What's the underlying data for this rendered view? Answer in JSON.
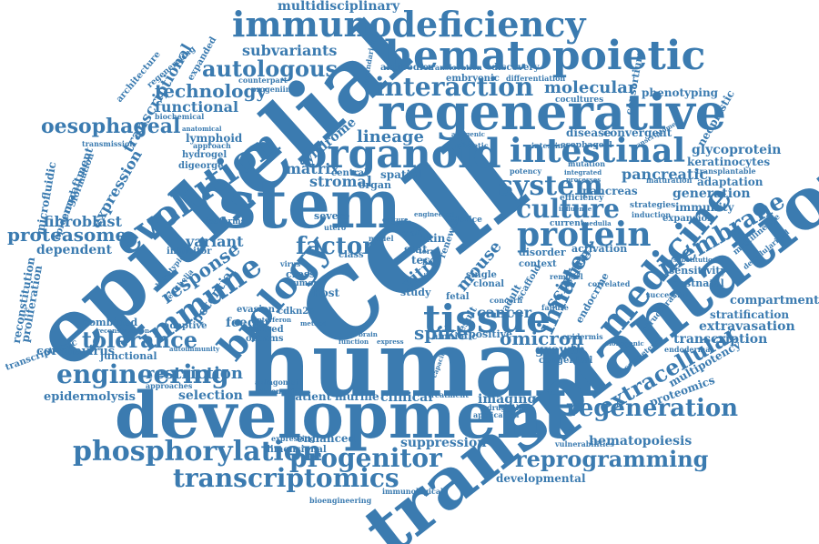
{
  "theme": {
    "word_color": "#3b7bb0",
    "background": "#ffffff"
  },
  "words": {
    "cell": "cell",
    "human": "human",
    "transplantation": "transplantation",
    "epithelial": "epithelial",
    "development": "development",
    "stem": "stem",
    "regenerative": "regenerative",
    "organoid": "organoid",
    "intestinal": "intestinal",
    "hematopoietic": "hematopoietic",
    "immunodeficiency": "immunodeficiency",
    "interaction": "interaction",
    "tissue": "tissue",
    "medicine": "medicine",
    "protein": "protein",
    "system": "system",
    "culture": "culture",
    "evolution": "evolution",
    "biology": "biology",
    "immune": "immune",
    "engineering": "engineering",
    "phosphorylation": "phosphorylation",
    "progenitor": "progenitor",
    "transcriptomics": "transcriptomics",
    "reprogramming": "reprogramming",
    "regeneration": "regeneration",
    "extracellular": "extracellular",
    "membrane": "membrane",
    "innate": "innate",
    "tolerance": "tolerance",
    "autologous": "autologous",
    "oesophageal": "oesophageal",
    "proteasome": "proteasome",
    "technology": "technology",
    "functional": "functional",
    "factor": "factor",
    "lineage": "lineage",
    "matrix": "matrix",
    "stromal": "stromal",
    "spike": "spike",
    "omicron": "omicron",
    "cancer": "cancer",
    "vitro": "vitro",
    "mouse": "mouse",
    "science": "science",
    "primary": "primary",
    "molecular": "molecular",
    "embryonic": "embryonic",
    "subvariants": "subvariants",
    "multidisciplinary": "multidisciplinary",
    "antibodies": "antibodies",
    "discovery": "discovery",
    "pancreatic": "pancreatic",
    "pancreas": "pancreas",
    "glycoprotein": "glycoprotein",
    "keratinocytes": "keratinocytes",
    "adaptation": "adaptation",
    "generation": "generation",
    "immunity": "immunity",
    "expansion": "expansion",
    "phenotyping": "phenotyping",
    "consortium": "consortium",
    "neoplastic": "neoplastic",
    "compartment": "compartment",
    "stratification": "stratification",
    "extravasation": "extravasation",
    "transcription": "transcription",
    "multipotency": "multipotency",
    "proteomics": "proteomics",
    "hematopoiesis": "hematopoiesis",
    "developmental": "developmental",
    "enhanced": "enhanced",
    "suppression": "suppression",
    "restriction": "restriction",
    "selection": "selection",
    "patient": "patient",
    "murine": "murine",
    "clinical": "clinical",
    "imaging": "imaging",
    "treatment": "treatment",
    "epidermolysis": "epidermolysis",
    "coronavirus": "coronavirus",
    "junctional": "junctional",
    "combined": "combined",
    "adaptive": "adaptive",
    "fibroblast": "fibroblast",
    "dependent": "dependent",
    "variant": "variant",
    "response": "response",
    "inhibitor": "inhibitor",
    "potential": "potential",
    "host": "host",
    "cdkn2a": "cdkn2a",
    "feeder": "feeder",
    "derived": "derived",
    "occams": "occams",
    "evasion": "evasion",
    "positive": "positive",
    "growth": "growth",
    "congenital": "congenital",
    "sensitivity": "sensitivity",
    "postnatal": "postnatal",
    "endocrine": "endocrine",
    "disorder": "disorder",
    "context": "context",
    "activation": "activation",
    "disease": "disease",
    "convergent": "convergent",
    "spatial": "spatial",
    "organ": "organ",
    "central": "central",
    "severe": "severe",
    "syndrome": "syndrome",
    "lymphoid": "lymphoid",
    "hydrogel": "hydrogel",
    "digeorge": "digeorge",
    "expression": "expression",
    "engraftment": "engraftment",
    "microfluidic": "microfluidic",
    "transcriptional": "transcriptional",
    "reconstitution": "reconstitution",
    "proliferation": "proliferation",
    "architecture": "architecture",
    "expanded": "expanded",
    "regenerating": "regenerating",
    "epidermal": "epidermal",
    "formation": "formation",
    "transcriptomic": "transcriptomic",
    "immunological": "immunological",
    "bioengineering": "bioengineering",
    "dimensional": "dimensional",
    "expressing": "expressing",
    "translocation": "translocation",
    "differentiation": "differentiation",
    "cocultures": "cocultures",
    "maturation": "maturation",
    "strategies": "strategies",
    "induction": "induction",
    "efficiency": "efficiency",
    "current": "current",
    "esophageal": "esophageal",
    "intestine": "intestine",
    "transplantable": "transplantable",
    "multilineage": "multilineage",
    "decellularized": "decellularized",
    "successful": "successful",
    "structural": "structural",
    "competence": "competence",
    "endodermal": "endodermal",
    "vulnerabilities": "vulnerabilities",
    "druggable": "druggable",
    "application": "application",
    "amniotic": "amniotic",
    "fetal": "fetal",
    "single": "single",
    "clonal": "clonal",
    "renewal": "renewal",
    "skin": "skin",
    "stat": "stat",
    "tec": "tec",
    "study": "study",
    "cross": "cross",
    "tumor": "tumor",
    "virus": "virus",
    "class": "class",
    "result": "result",
    "adult": "adult",
    "scaffold": "scaffold",
    "remodel": "remodel",
    "failure": "failure",
    "concern": "concern",
    "device": "device",
    "epidermis": "epidermis",
    "correlated": "correlated",
    "substitution": "substitution",
    "biochemical": "biochemical",
    "approach": "approach",
    "transmission": "transmission",
    "anatomical": "anatomical",
    "counterpart": "counterpart",
    "boundaries": "boundaries",
    "progenitor_small": "progeniin",
    "isoforms": "isoforms",
    "phenotypic": "phenotypic",
    "epithelia": "epithelia",
    "reconstruction": "reconstruction",
    "interferon": "interferon",
    "antagonist": "antagonist",
    "chromatin": "chromatin",
    "approaches": "approaches",
    "autoimmunity": "autoimmunity",
    "mimetic": "mimetic",
    "antigenic": "antigenic",
    "clonogenic": "clonogenic",
    "transcriptome": "transcriptome",
    "integrated": "integrated",
    "processes": "processes",
    "mutation": "mutation",
    "potency": "potency",
    "capacity": "capacity",
    "method": "method",
    "brain": "brain",
    "express": "express",
    "function": "function",
    "medulla": "medulla",
    "influence": "influence",
    "tolerance_small": "model",
    "ulcer": "culture",
    "engineered": "engineered",
    "cycle": "cycle",
    "graft": "graft",
    "term": "term",
    "line": "line",
    "utero": "utero"
  }
}
